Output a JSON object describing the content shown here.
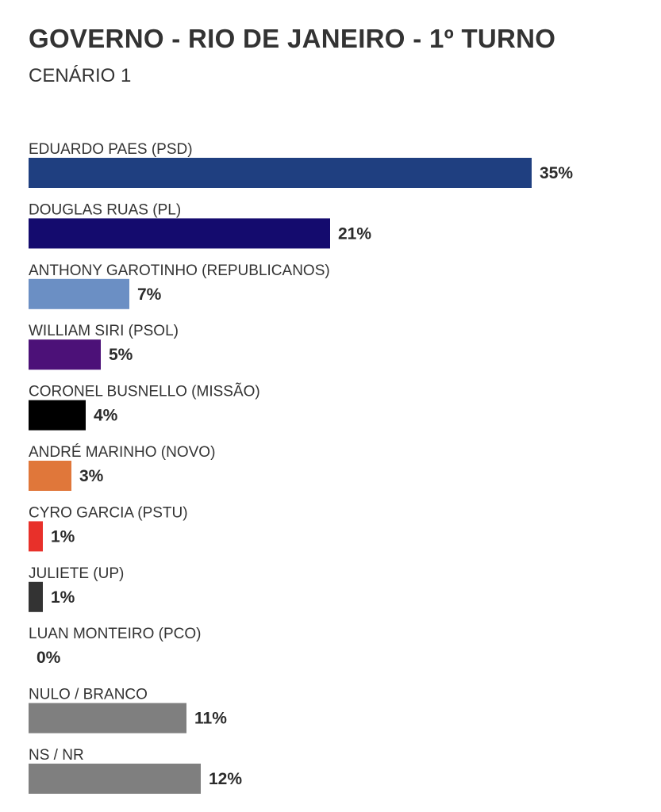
{
  "chart_data": {
    "type": "bar",
    "orientation": "horizontal",
    "title": "GOVERNO - RIO DE JANEIRO - 1º TURNO",
    "subtitle": "CENÁRIO 1",
    "unit": "%",
    "xlim": [
      0,
      35
    ],
    "grid": false,
    "legend": "none",
    "categories": [
      "EDUARDO PAES (PSD)",
      "DOUGLAS RUAS (PL)",
      "ANTHONY GAROTINHO (REPUBLICANOS)",
      "WILLIAM SIRI (PSOL)",
      "CORONEL BUSNELLO (MISSÃO)",
      "ANDRÉ MARINHO (NOVO)",
      "CYRO GARCIA (PSTU)",
      "JULIETE (UP)",
      "LUAN MONTEIRO (PCO)",
      "NULO / BRANCO",
      "NS / NR"
    ],
    "values": [
      35,
      21,
      7,
      5,
      4,
      3,
      1,
      1,
      0,
      11,
      12
    ],
    "value_labels": [
      "35%",
      "21%",
      "7%",
      "5%",
      "4%",
      "3%",
      "1%",
      "1%",
      "0%",
      "11%",
      "12%"
    ],
    "colors": [
      "#1f3f80",
      "#140b6e",
      "#6b8fc4",
      "#4c1178",
      "#000000",
      "#e0773a",
      "#e8302a",
      "#333333",
      "#333333",
      "#7f7f7f",
      "#7f7f7f"
    ]
  }
}
